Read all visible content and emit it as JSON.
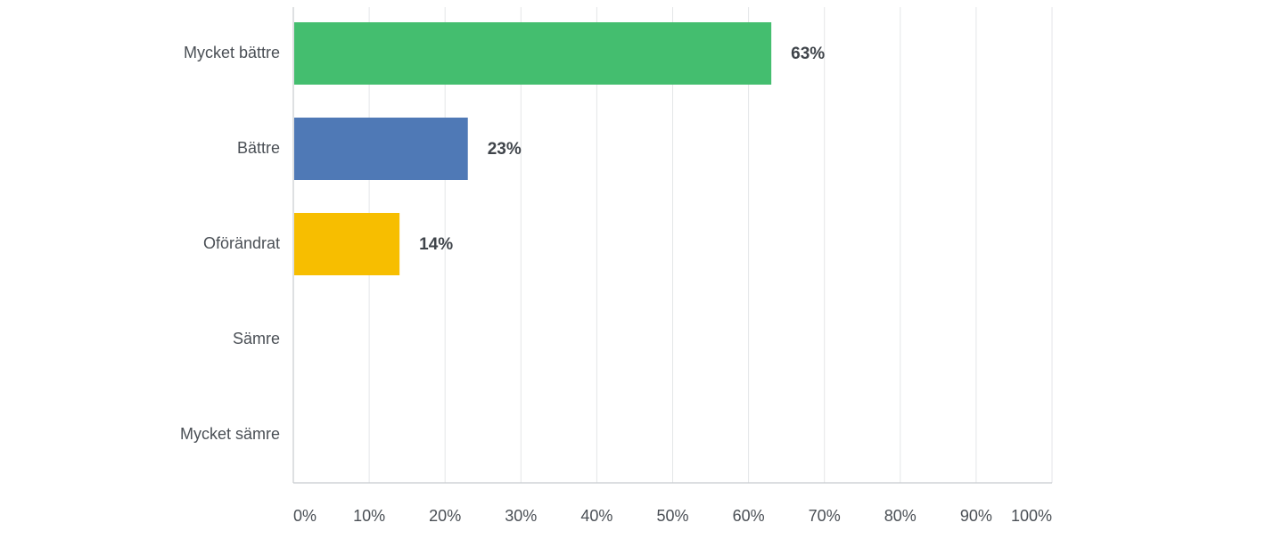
{
  "chart_data": {
    "type": "bar",
    "orientation": "horizontal",
    "categories": [
      "Mycket bättre",
      "Bättre",
      "Oförändrat",
      "Sämre",
      "Mycket sämre"
    ],
    "values": [
      63,
      23,
      14,
      0,
      0
    ],
    "value_labels": [
      "63%",
      "23%",
      "14%",
      "",
      ""
    ],
    "colors": [
      "#44be6f",
      "#4f79b6",
      "#f7be00",
      "#7a7a7a",
      "#7a7a7a"
    ],
    "xlim": [
      0,
      100
    ],
    "x_ticks": [
      0,
      10,
      20,
      30,
      40,
      50,
      60,
      70,
      80,
      90,
      100
    ],
    "x_tick_labels": [
      "0%",
      "10%",
      "20%",
      "30%",
      "40%",
      "50%",
      "60%",
      "70%",
      "80%",
      "90%",
      "100%"
    ],
    "grid": true,
    "legend": "none"
  }
}
